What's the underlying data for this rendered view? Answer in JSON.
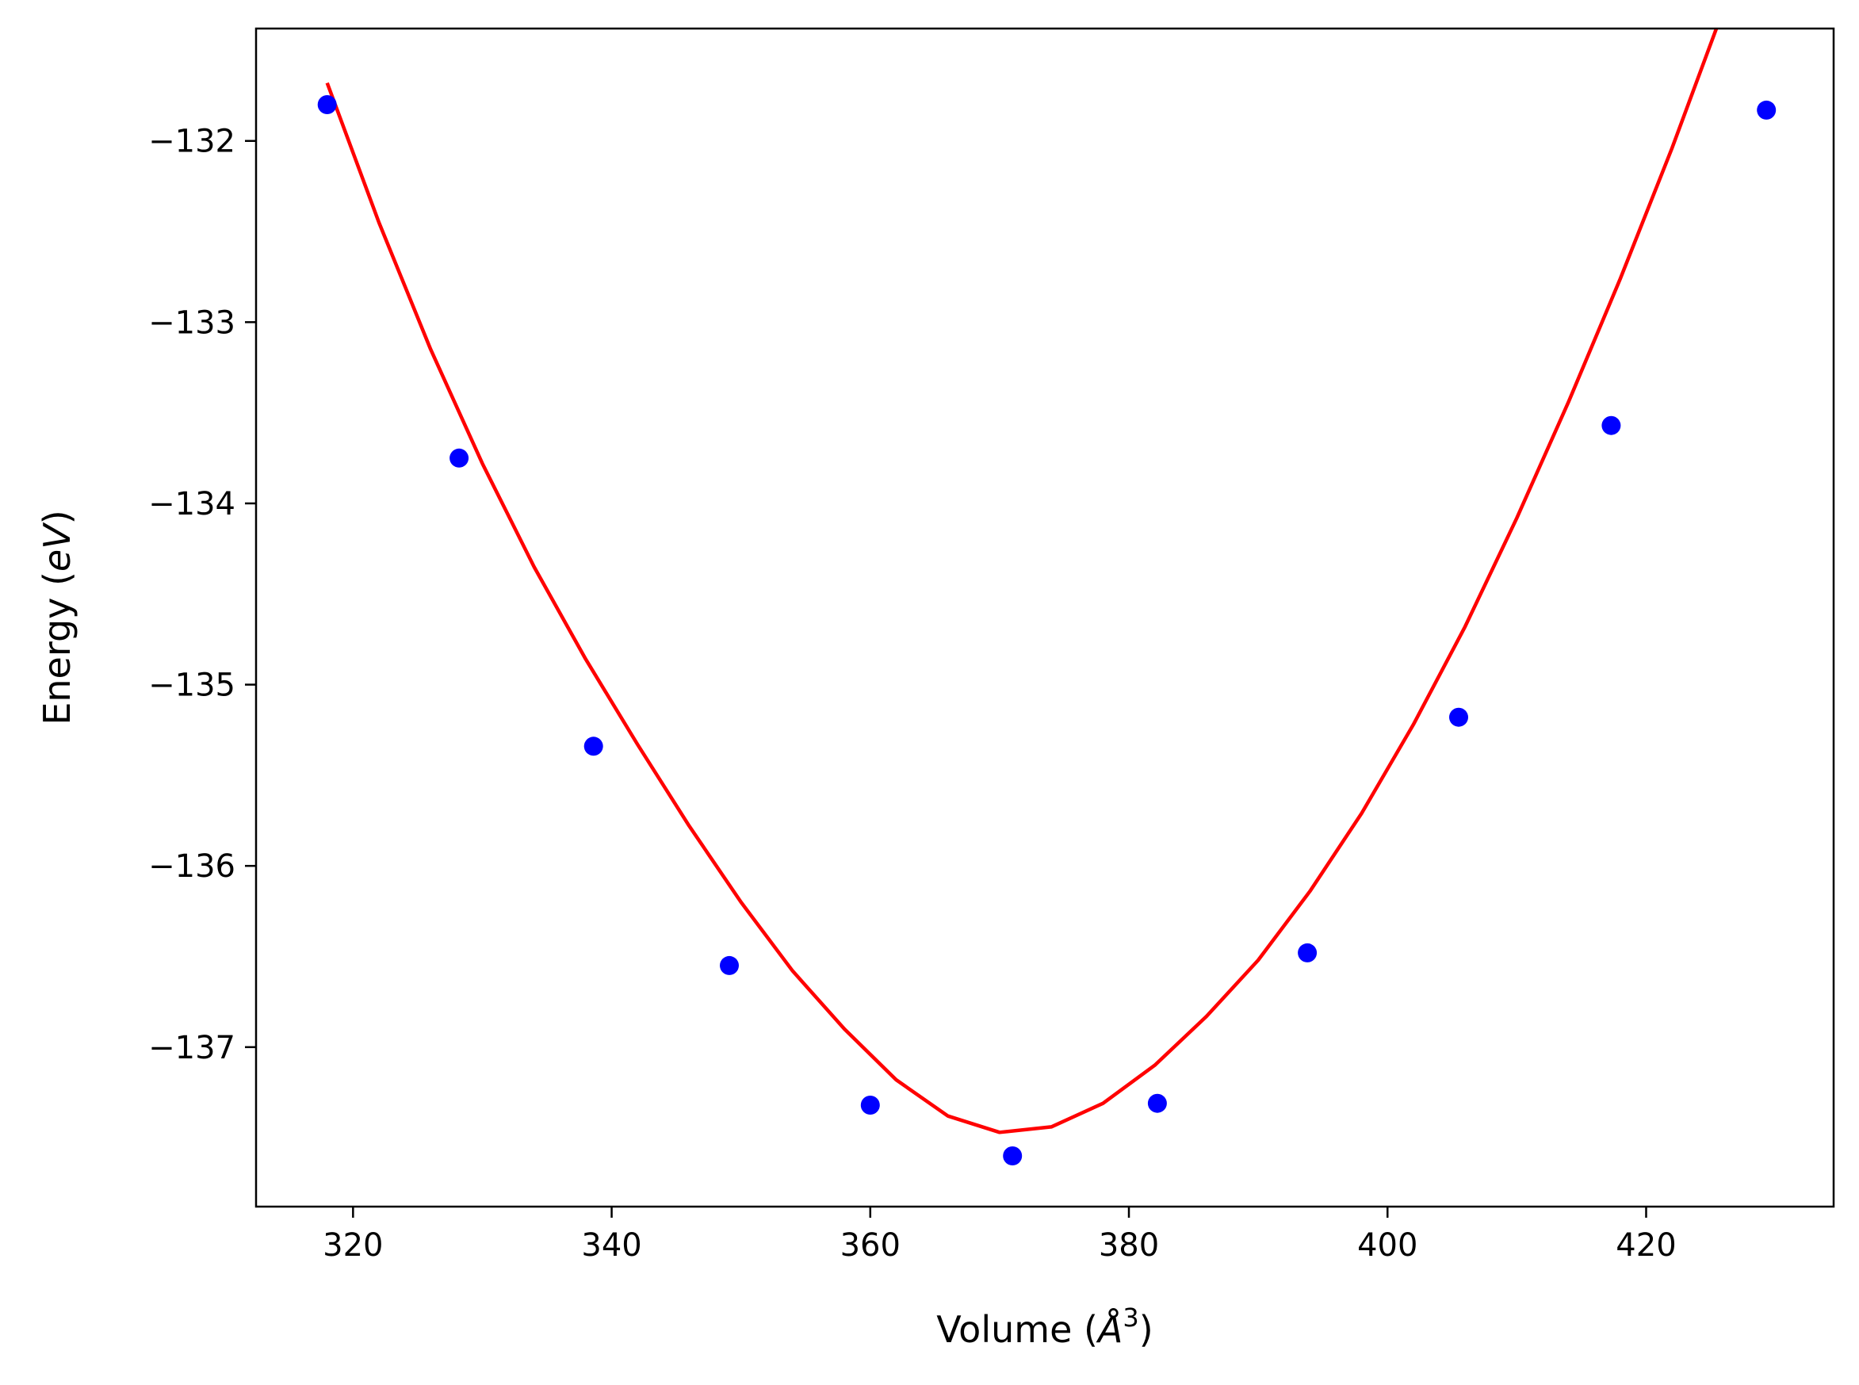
{
  "chart_data": {
    "type": "scatter",
    "title": "",
    "xlabel": "Volume (Å^3)",
    "xlabel_parts": {
      "prefix": "Volume (",
      "symbol": "Å",
      "exponent": "3",
      "suffix": ")"
    },
    "ylabel": "Energy (eV)",
    "ylabel_parts": {
      "prefix": "Energy (",
      "unit": "eV",
      "suffix": ")"
    },
    "xlim": [
      312.5,
      434.5
    ],
    "ylim": [
      -137.88,
      -131.38
    ],
    "x_ticks": [
      320,
      340,
      360,
      380,
      400,
      420
    ],
    "x_tick_labels": [
      "320",
      "340",
      "360",
      "380",
      "400",
      "420"
    ],
    "y_ticks": [
      -132,
      -133,
      -134,
      -135,
      -136,
      -137
    ],
    "y_tick_labels": [
      "−132",
      "−133",
      "−134",
      "−135",
      "−136",
      "−137"
    ],
    "grid": false,
    "legend": "none",
    "series": [
      {
        "kind": "scatter",
        "color": "#0000ff",
        "x": [
          318.0,
          328.2,
          338.6,
          349.1,
          360.0,
          371.0,
          382.2,
          393.8,
          405.5,
          417.3,
          429.3
        ],
        "y": [
          -131.8,
          -133.75,
          -135.34,
          -136.55,
          -137.32,
          -137.6,
          -137.31,
          -136.48,
          -135.18,
          -133.57,
          -131.83
        ]
      },
      {
        "kind": "line",
        "color": "#ff0000",
        "x": [
          318,
          322,
          326,
          330,
          334,
          338,
          342,
          346,
          350,
          354,
          358,
          362,
          366,
          370,
          374,
          378,
          382,
          386,
          390,
          394,
          398,
          402,
          406,
          410,
          414,
          418,
          422,
          426,
          429.5
        ],
        "y": [
          -131.68,
          -132.45,
          -133.15,
          -133.78,
          -134.35,
          -134.86,
          -135.33,
          -135.78,
          -136.2,
          -136.58,
          -136.9,
          -137.18,
          -137.38,
          -137.47,
          -137.44,
          -137.31,
          -137.1,
          -136.83,
          -136.52,
          -136.14,
          -135.71,
          -135.22,
          -134.68,
          -134.08,
          -133.44,
          -132.76,
          -132.04,
          -131.27,
          -130.6
        ]
      }
    ]
  }
}
